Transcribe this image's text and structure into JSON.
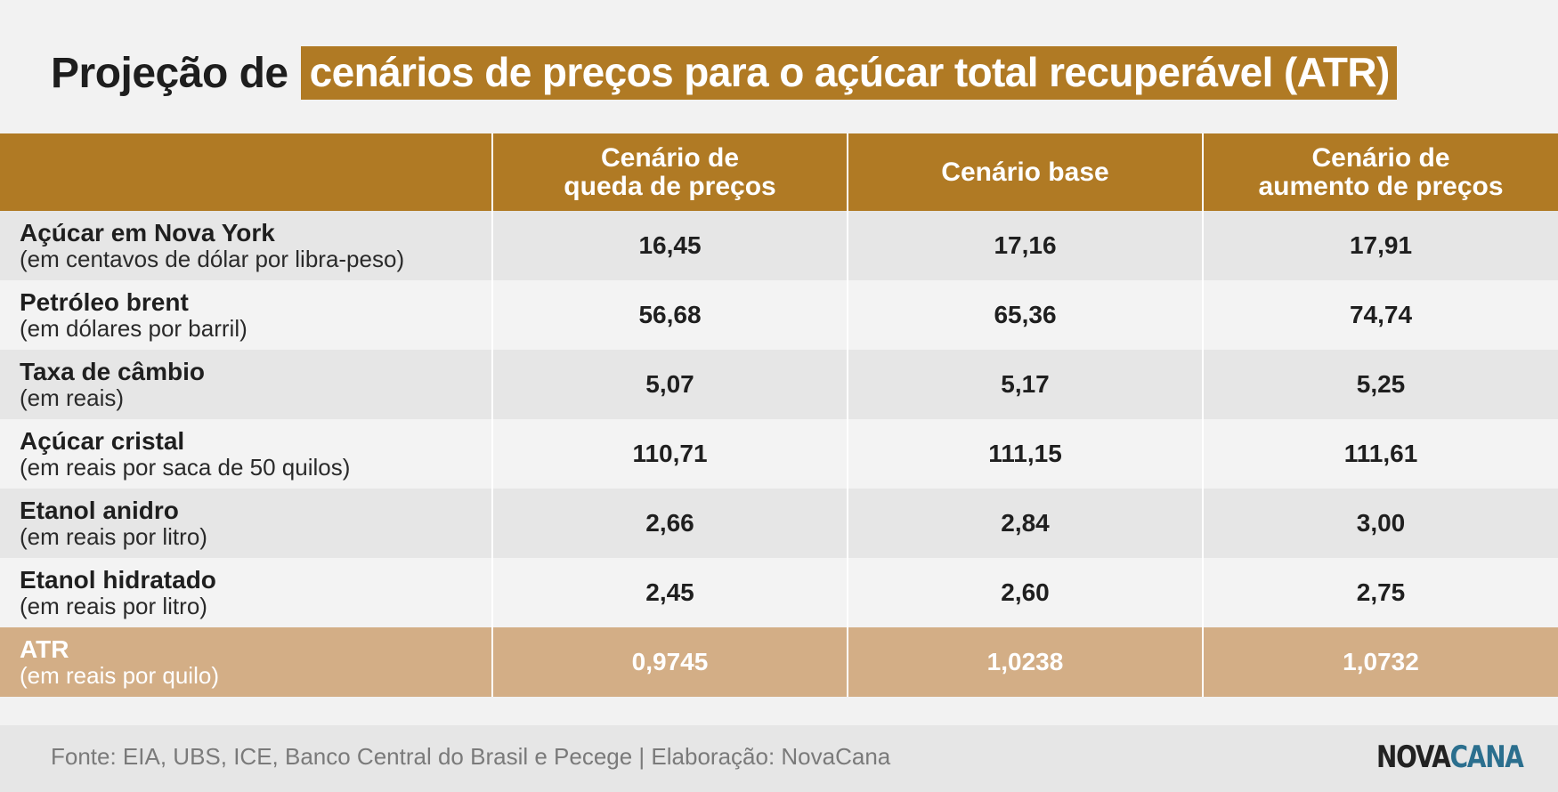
{
  "title": {
    "lead": "Projeção de",
    "highlight": "cenários de preços para o açúcar total recuperável (ATR)"
  },
  "colors": {
    "accent": "#b07a24",
    "total_row": "#d3ae86",
    "row_odd": "#e6e6e6",
    "row_even": "#f3f3f3",
    "logo_blue": "#2b6f8e"
  },
  "chart_data": {
    "type": "table",
    "title": "Projeção de cenários de preços para o açúcar total recuperável (ATR)",
    "columns": [
      {
        "line1": "Cenário de",
        "line2": "queda de preços"
      },
      {
        "line1": "Cenário base",
        "line2": ""
      },
      {
        "line1": "Cenário de",
        "line2": "aumento de preços"
      }
    ],
    "rows": [
      {
        "name": "Açúcar em Nova York",
        "unit": "(em centavos de dólar por libra-peso)",
        "values": [
          "16,45",
          "17,16",
          "17,91"
        ]
      },
      {
        "name": "Petróleo brent",
        "unit": "(em dólares por barril)",
        "values": [
          "56,68",
          "65,36",
          "74,74"
        ]
      },
      {
        "name": "Taxa de câmbio",
        "unit": "(em reais)",
        "values": [
          "5,07",
          "5,17",
          "5,25"
        ]
      },
      {
        "name": "Açúcar cristal",
        "unit": "(em reais por saca de 50 quilos)",
        "values": [
          "110,71",
          "111,15",
          "111,61"
        ]
      },
      {
        "name": "Etanol anidro",
        "unit": "(em reais por litro)",
        "values": [
          "2,66",
          "2,84",
          "3,00"
        ]
      },
      {
        "name": "Etanol hidratado",
        "unit": "(em reais por litro)",
        "values": [
          "2,45",
          "2,60",
          "2,75"
        ]
      },
      {
        "name": "ATR",
        "unit": "(em reais por quilo)",
        "values": [
          "0,9745",
          "1,0238",
          "1,0732"
        ]
      }
    ]
  },
  "footer": {
    "source": "Fonte: EIA, UBS, ICE, Banco Central do Brasil e Pecege  | Elaboração: NovaCana",
    "logo_part1": "NOVA",
    "logo_part2": "CANA"
  }
}
